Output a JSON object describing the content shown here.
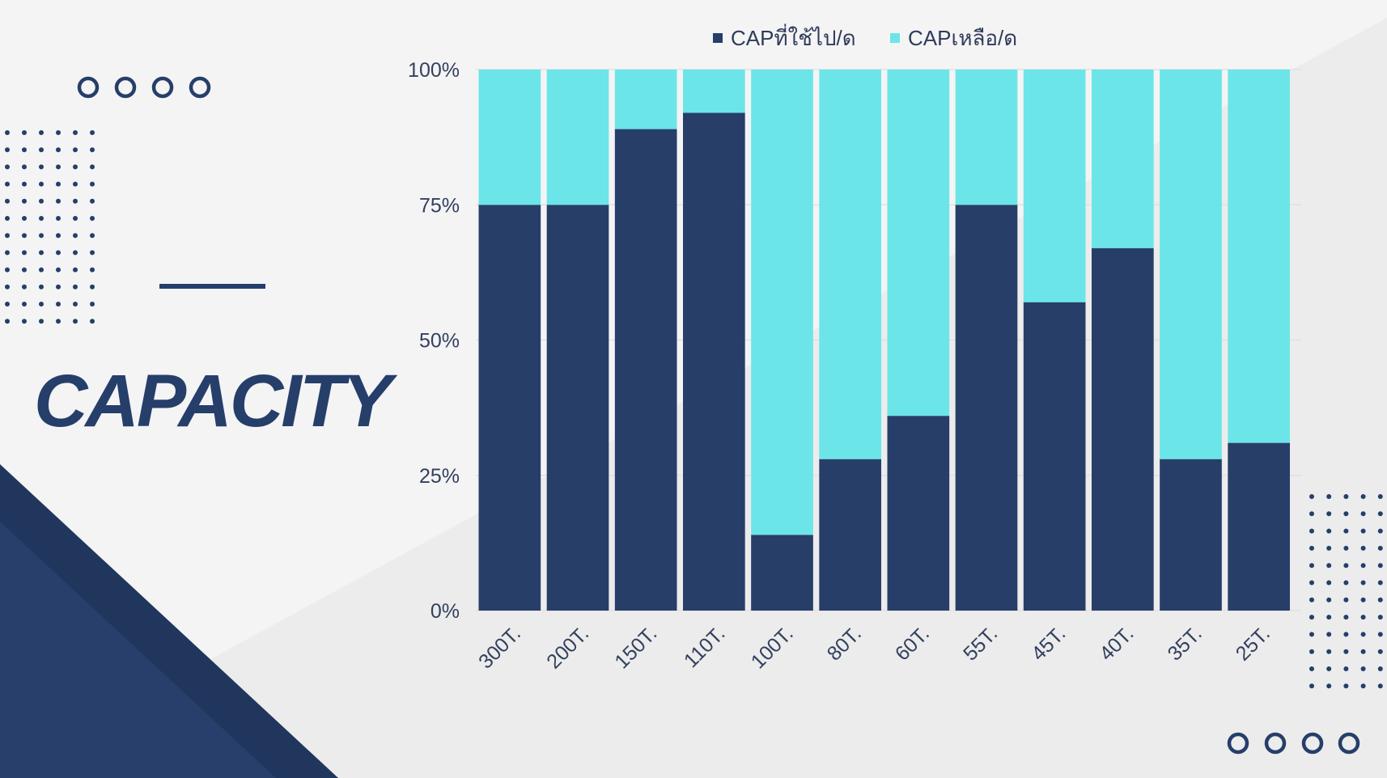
{
  "slide": {
    "title": "CAPACITY"
  },
  "colors": {
    "used": "#273e69",
    "remaining": "#6ce5e8",
    "navy": "#263e6a",
    "background": "#f4f4f4"
  },
  "chart_data": {
    "type": "bar",
    "stacked": true,
    "normalized": true,
    "categories": [
      "300T.",
      "200T.",
      "150T.",
      "110T.",
      "100T.",
      "80T.",
      "60T.",
      "55T.",
      "45T.",
      "40T.",
      "35T.",
      "25T."
    ],
    "series": [
      {
        "name": "CAPที่ใช้ไป/ด",
        "values": [
          75,
          75,
          89,
          92,
          14,
          28,
          36,
          75,
          57,
          67,
          28,
          31
        ],
        "color": "#273e69"
      },
      {
        "name": "CAPเหลือ/ด",
        "values": [
          25,
          25,
          11,
          8,
          86,
          72,
          64,
          25,
          43,
          33,
          72,
          69
        ],
        "color": "#6ce5e8"
      }
    ],
    "yticks": [
      "0%",
      "25%",
      "50%",
      "75%",
      "100%"
    ],
    "ylim": [
      0,
      100
    ],
    "grid": true,
    "legend": "top"
  }
}
